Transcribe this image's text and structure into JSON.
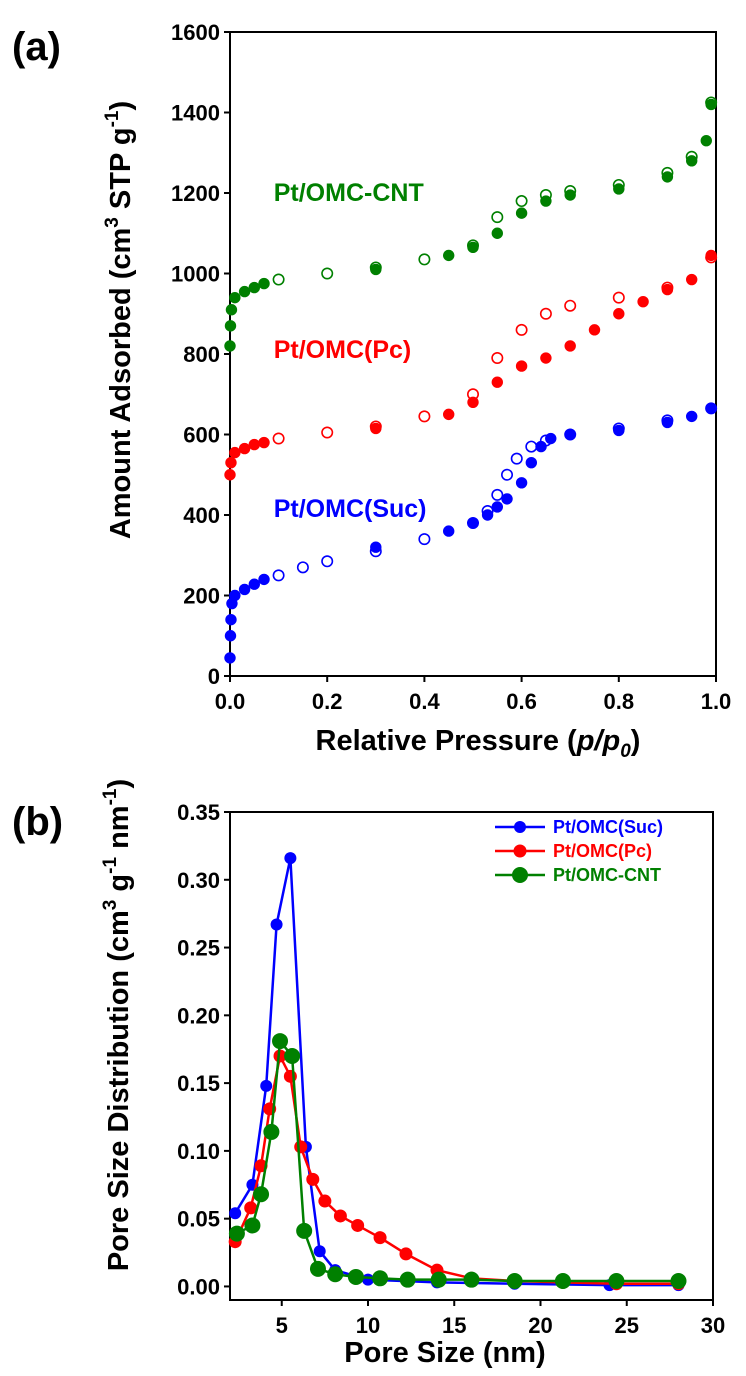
{
  "chart_data": [
    {
      "type": "scatter",
      "panel_label": "(a)",
      "xlabel_main": "Relative Pressure (",
      "xlabel_var": "p/p",
      "xlabel_sub": "0",
      "xlabel_close": ")",
      "ylabel_main": "Amount Adsorbed (cm",
      "ylabel_sup": "3",
      "ylabel_mid": " STP g",
      "ylabel_sup2": "-1",
      "ylabel_close": ")",
      "xlim": [
        0,
        1.0
      ],
      "ylim": [
        0,
        1600
      ],
      "xticks": [
        0.0,
        0.2,
        0.4,
        0.6,
        0.8,
        1.0
      ],
      "xtick_labels": [
        "0.0",
        "0.2",
        "0.4",
        "0.6",
        "0.8",
        "1.0"
      ],
      "yticks": [
        0,
        200,
        400,
        600,
        800,
        1000,
        1200,
        1400,
        1600
      ],
      "ytick_labels": [
        "0",
        "200",
        "400",
        "600",
        "800",
        "1000",
        "1200",
        "1400",
        "1600"
      ],
      "series": [
        {
          "name": "Pt/OMC(Suc)",
          "color": "#0000ff",
          "adsorption": [
            [
              0.0,
              45
            ],
            [
              0.001,
              100
            ],
            [
              0.002,
              140
            ],
            [
              0.004,
              180
            ],
            [
              0.01,
              200
            ],
            [
              0.03,
              215
            ],
            [
              0.05,
              228
            ],
            [
              0.07,
              240
            ],
            [
              0.3,
              320
            ],
            [
              0.45,
              360
            ],
            [
              0.5,
              380
            ],
            [
              0.53,
              400
            ],
            [
              0.55,
              420
            ],
            [
              0.57,
              440
            ],
            [
              0.6,
              480
            ],
            [
              0.62,
              530
            ],
            [
              0.64,
              570
            ],
            [
              0.66,
              590
            ],
            [
              0.7,
              600
            ],
            [
              0.8,
              610
            ],
            [
              0.9,
              630
            ],
            [
              0.95,
              645
            ],
            [
              0.99,
              665
            ]
          ],
          "desorption": [
            [
              0.1,
              250
            ],
            [
              0.15,
              270
            ],
            [
              0.2,
              285
            ],
            [
              0.3,
              310
            ],
            [
              0.4,
              340
            ],
            [
              0.5,
              380
            ],
            [
              0.53,
              410
            ],
            [
              0.55,
              450
            ],
            [
              0.57,
              500
            ],
            [
              0.59,
              540
            ],
            [
              0.62,
              570
            ],
            [
              0.65,
              585
            ],
            [
              0.7,
              600
            ],
            [
              0.8,
              615
            ],
            [
              0.9,
              635
            ],
            [
              0.99,
              665
            ]
          ]
        },
        {
          "name": "Pt/OMC(Pc)",
          "color": "#ff0000",
          "adsorption": [
            [
              0.0,
              500
            ],
            [
              0.002,
              530
            ],
            [
              0.01,
              555
            ],
            [
              0.03,
              565
            ],
            [
              0.05,
              575
            ],
            [
              0.07,
              580
            ],
            [
              0.3,
              615
            ],
            [
              0.45,
              650
            ],
            [
              0.5,
              680
            ],
            [
              0.55,
              730
            ],
            [
              0.6,
              770
            ],
            [
              0.65,
              790
            ],
            [
              0.7,
              820
            ],
            [
              0.75,
              860
            ],
            [
              0.8,
              900
            ],
            [
              0.85,
              930
            ],
            [
              0.9,
              960
            ],
            [
              0.95,
              985
            ],
            [
              0.99,
              1045
            ]
          ],
          "desorption": [
            [
              0.1,
              590
            ],
            [
              0.2,
              605
            ],
            [
              0.3,
              620
            ],
            [
              0.4,
              645
            ],
            [
              0.5,
              700
            ],
            [
              0.55,
              790
            ],
            [
              0.6,
              860
            ],
            [
              0.65,
              900
            ],
            [
              0.7,
              920
            ],
            [
              0.8,
              940
            ],
            [
              0.9,
              965
            ],
            [
              0.99,
              1040
            ]
          ]
        },
        {
          "name": "Pt/OMC-CNT",
          "color": "#008000",
          "adsorption": [
            [
              0.0,
              820
            ],
            [
              0.001,
              870
            ],
            [
              0.003,
              910
            ],
            [
              0.01,
              940
            ],
            [
              0.03,
              955
            ],
            [
              0.05,
              965
            ],
            [
              0.07,
              975
            ],
            [
              0.3,
              1010
            ],
            [
              0.45,
              1045
            ],
            [
              0.5,
              1065
            ],
            [
              0.55,
              1100
            ],
            [
              0.6,
              1150
            ],
            [
              0.65,
              1180
            ],
            [
              0.7,
              1195
            ],
            [
              0.8,
              1210
            ],
            [
              0.9,
              1240
            ],
            [
              0.95,
              1280
            ],
            [
              0.98,
              1330
            ],
            [
              0.99,
              1420
            ]
          ],
          "desorption": [
            [
              0.1,
              985
            ],
            [
              0.2,
              1000
            ],
            [
              0.3,
              1015
            ],
            [
              0.4,
              1035
            ],
            [
              0.5,
              1070
            ],
            [
              0.55,
              1140
            ],
            [
              0.6,
              1180
            ],
            [
              0.65,
              1195
            ],
            [
              0.7,
              1205
            ],
            [
              0.8,
              1220
            ],
            [
              0.9,
              1250
            ],
            [
              0.95,
              1290
            ],
            [
              0.99,
              1425
            ]
          ]
        }
      ],
      "annotations": [
        {
          "text": "Pt/OMC-CNT",
          "color": "#008000",
          "x": 0.09,
          "y": 1180
        },
        {
          "text": "Pt/OMC(Pc)",
          "color": "#ff0000",
          "x": 0.09,
          "y": 790
        },
        {
          "text": "Pt/OMC(Suc)",
          "color": "#0000ff",
          "x": 0.09,
          "y": 395
        }
      ]
    },
    {
      "type": "line",
      "panel_label": "(b)",
      "xlabel": "Pore Size (nm)",
      "ylabel_main": "Pore Size Distribution (cm",
      "ylabel_sup": "3",
      "ylabel_mid": " g",
      "ylabel_sup2": "-1",
      "ylabel_mid2": " nm",
      "ylabel_sup3": "-1",
      "ylabel_close": ")",
      "xlim": [
        2,
        30
      ],
      "ylim": [
        -0.01,
        0.35
      ],
      "xticks": [
        5,
        10,
        15,
        20,
        25,
        30
      ],
      "xtick_labels": [
        "5",
        "10",
        "15",
        "20",
        "25",
        "30"
      ],
      "yticks": [
        0.0,
        0.05,
        0.1,
        0.15,
        0.2,
        0.25,
        0.3,
        0.35
      ],
      "ytick_labels": [
        "0.00",
        "0.05",
        "0.10",
        "0.15",
        "0.20",
        "0.25",
        "0.30",
        "0.35"
      ],
      "legend_position": "top-right",
      "series": [
        {
          "name": "Pt/OMC(Suc)",
          "color": "#0000ff",
          "x": [
            2.3,
            3.3,
            4.1,
            4.7,
            5.5,
            6.4,
            7.2,
            8.1,
            10.0,
            14.0,
            18.5,
            24.0,
            28.0
          ],
          "values": [
            0.054,
            0.075,
            0.148,
            0.267,
            0.316,
            0.103,
            0.026,
            0.012,
            0.005,
            0.003,
            0.002,
            0.001,
            0.001
          ]
        },
        {
          "name": "Pt/OMC(Pc)",
          "color": "#ff0000",
          "x": [
            2.3,
            3.2,
            3.8,
            4.3,
            4.9,
            5.5,
            6.1,
            6.8,
            7.5,
            8.4,
            9.4,
            10.7,
            12.2,
            14.0,
            16.0,
            18.5,
            21.3,
            24.4,
            28.0
          ],
          "values": [
            0.033,
            0.058,
            0.089,
            0.131,
            0.17,
            0.155,
            0.103,
            0.079,
            0.063,
            0.052,
            0.045,
            0.036,
            0.024,
            0.012,
            0.006,
            0.004,
            0.003,
            0.002,
            0.002
          ]
        },
        {
          "name": "Pt/OMC-CNT",
          "color": "#008000",
          "x": [
            2.4,
            3.3,
            3.8,
            4.4,
            4.9,
            5.6,
            6.3,
            7.1,
            8.1,
            9.3,
            10.7,
            12.3,
            14.1,
            16.0,
            18.5,
            21.3,
            24.4,
            28.0
          ],
          "values": [
            0.039,
            0.045,
            0.068,
            0.114,
            0.181,
            0.17,
            0.041,
            0.013,
            0.009,
            0.007,
            0.006,
            0.005,
            0.005,
            0.005,
            0.004,
            0.004,
            0.004,
            0.004
          ]
        }
      ]
    }
  ]
}
